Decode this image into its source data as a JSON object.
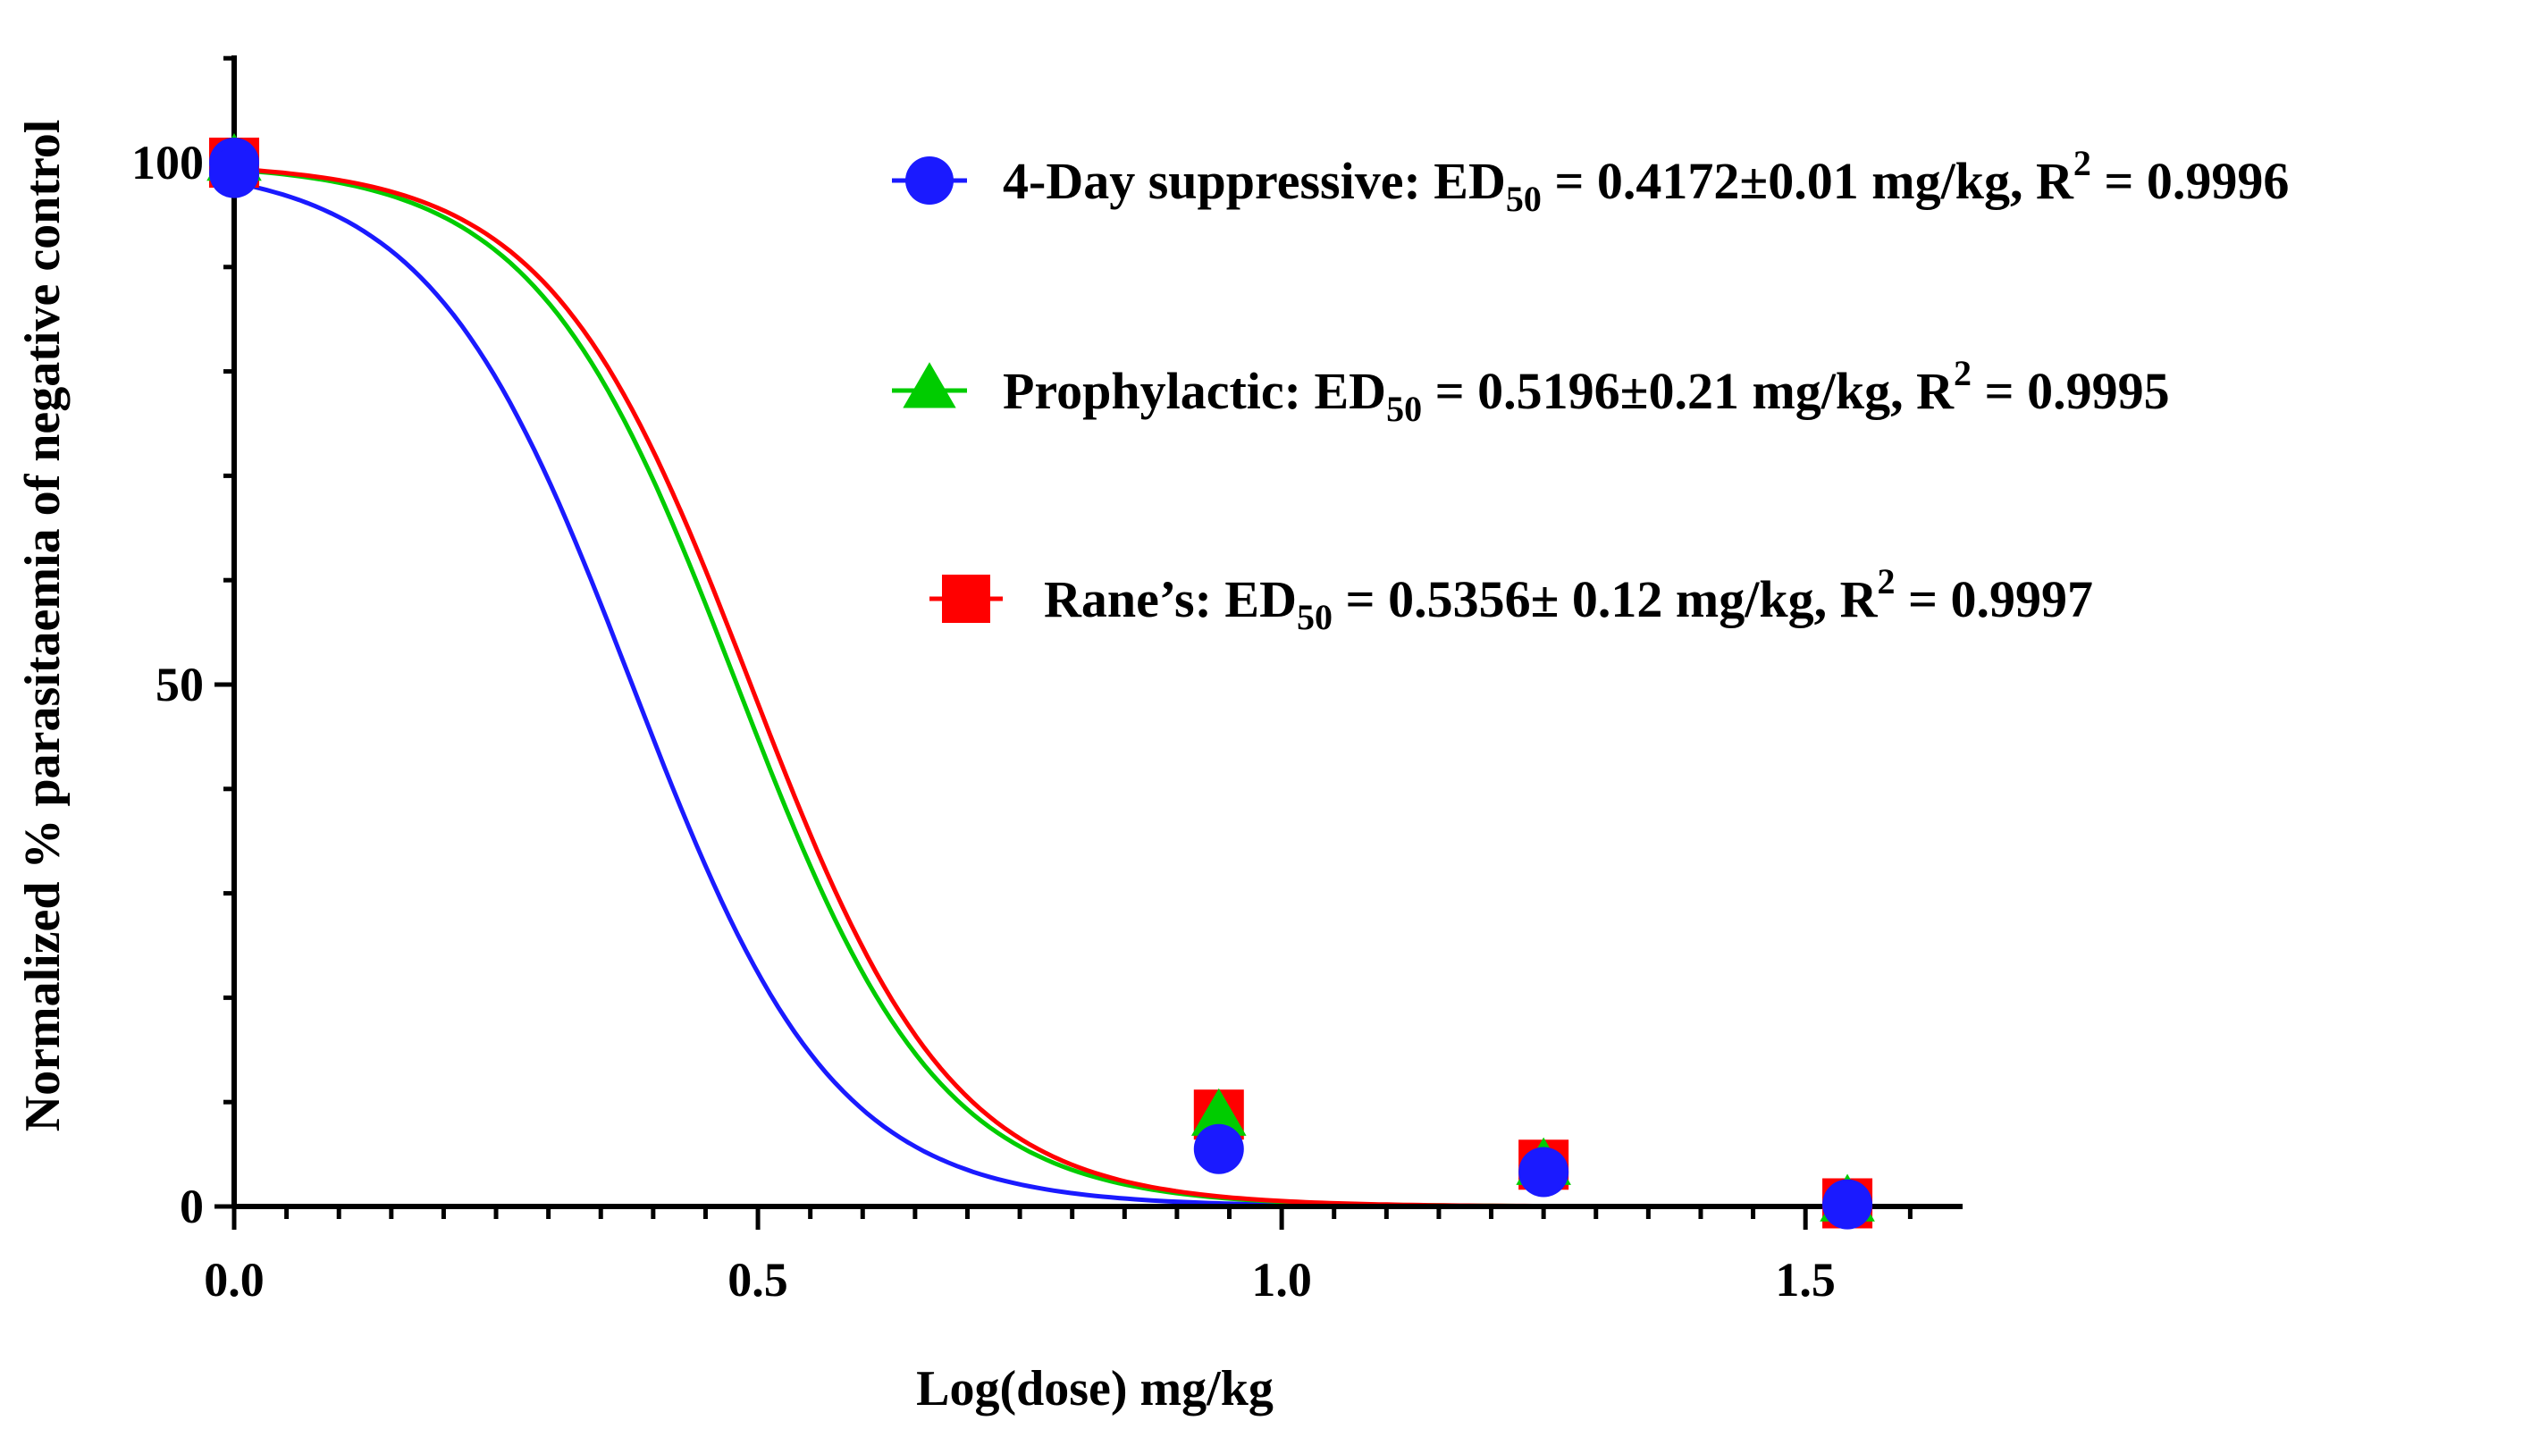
{
  "chart_data": {
    "type": "line",
    "xlabel": "Log(dose) mg/kg",
    "ylabel": "Normalized % parasitaemia of negative control",
    "xlim": [
      0,
      1.65
    ],
    "ylim": [
      0,
      110
    ],
    "x_ticks": [
      {
        "value": 0,
        "label": "0.0"
      },
      {
        "value": 0.5,
        "label": "0.5"
      },
      {
        "value": 1.0,
        "label": "1.0"
      },
      {
        "value": 1.5,
        "label": "1.5"
      }
    ],
    "y_ticks": [
      {
        "value": 0,
        "label": "0"
      },
      {
        "value": 50,
        "label": "50"
      },
      {
        "value": 100,
        "label": "100"
      }
    ],
    "series": [
      {
        "name": "4-Day suppressive",
        "color": "#1a1aff",
        "marker": "circle",
        "legend": {
          "prefix": "4-Day suppressive: ED",
          "sub": "50",
          "mid": " = 0.4172±0.01 mg/kg, R",
          "sup": "2",
          "suffix": " = 0.9996"
        },
        "logED50": 0.38,
        "hill": 4.5,
        "points": [
          {
            "x": 0.0,
            "y": 100
          },
          {
            "x": 0.0,
            "y": 99
          },
          {
            "x": 0.94,
            "y": 5.5
          },
          {
            "x": 1.25,
            "y": 3.3
          },
          {
            "x": 1.54,
            "y": 0.2
          }
        ]
      },
      {
        "name": "Prophylactic",
        "color": "#00cc00",
        "marker": "triangle",
        "legend": {
          "prefix": "Prophylactic: ED",
          "sub": "50",
          "mid": " = 0.5196±0.21 mg/kg, R",
          "sup": "2",
          "suffix": " = 0.9995"
        },
        "logED50": 0.48,
        "hill": 4.5,
        "points": [
          {
            "x": 0.0,
            "y": 100
          },
          {
            "x": 0.94,
            "y": 8.5
          },
          {
            "x": 1.25,
            "y": 3.8
          },
          {
            "x": 1.54,
            "y": 0.3
          }
        ]
      },
      {
        "name": "Rane's",
        "color": "#ff0000",
        "marker": "square",
        "legend": {
          "prefix": "Rane’s: ED",
          "sub": "50",
          "mid": " = 0.5356± 0.12 mg/kg, R",
          "sup": "2",
          "suffix": " = 0.9997"
        },
        "logED50": 0.493,
        "hill": 4.5,
        "points": [
          {
            "x": 0.0,
            "y": 100
          },
          {
            "x": 0.94,
            "y": 8.8
          },
          {
            "x": 1.25,
            "y": 4.0
          },
          {
            "x": 1.54,
            "y": 0.3
          }
        ]
      }
    ]
  }
}
